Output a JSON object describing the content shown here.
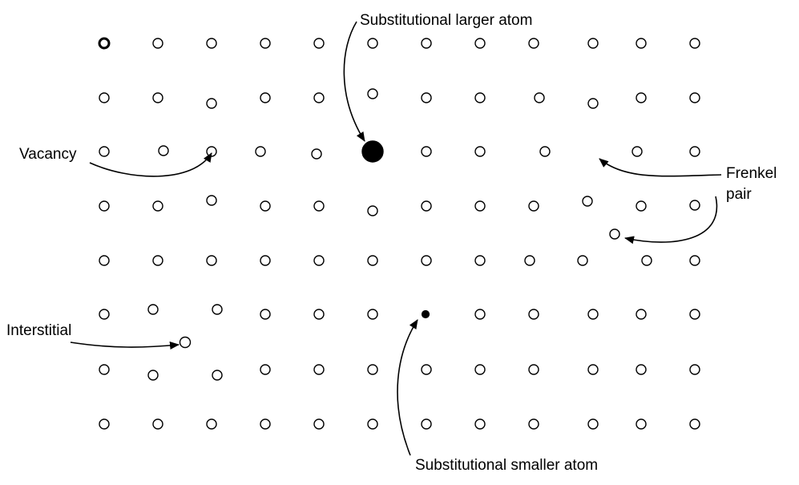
{
  "labels": {
    "substitutional_larger": "Substitutional larger atom",
    "vacancy": "Vacancy",
    "frenkel_line1": "Frenkel",
    "frenkel_line2": "pair",
    "interstitial": "Interstitial",
    "substitutional_smaller": "Substitutional smaller atom"
  },
  "colors": {
    "atom_stroke": "#000000",
    "atom_fill": "#ffffff",
    "substitutional_fill": "#000000",
    "arrow": "#000000"
  }
}
